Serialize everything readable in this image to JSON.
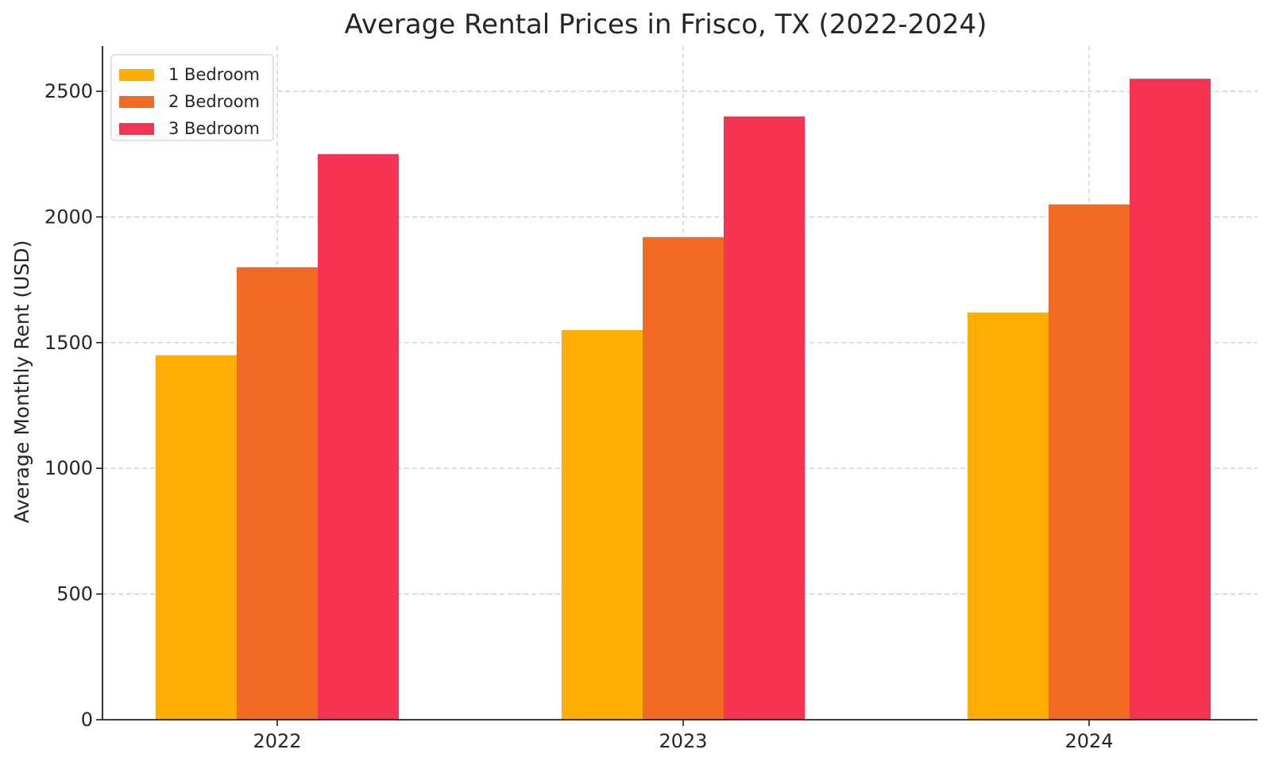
{
  "chart_data": {
    "type": "bar",
    "title": "Average Rental Prices in Frisco, TX (2022-2024)",
    "xlabel": "",
    "ylabel": "Average Monthly Rent (USD)",
    "categories": [
      "2022",
      "2023",
      "2024"
    ],
    "series": [
      {
        "name": "1 Bedroom",
        "color": "#FFAD05",
        "values": [
          1450,
          1550,
          1620
        ]
      },
      {
        "name": "2 Bedroom",
        "color": "#F26B24",
        "values": [
          1800,
          1920,
          2050
        ]
      },
      {
        "name": "3 Bedroom",
        "color": "#F53353",
        "values": [
          2250,
          2400,
          2550
        ]
      }
    ],
    "ylim": [
      0,
      2680
    ],
    "yticks": [
      "0",
      "500",
      "1000",
      "1500",
      "2000",
      "2500"
    ],
    "grid": true,
    "legend_position": "top-left"
  }
}
